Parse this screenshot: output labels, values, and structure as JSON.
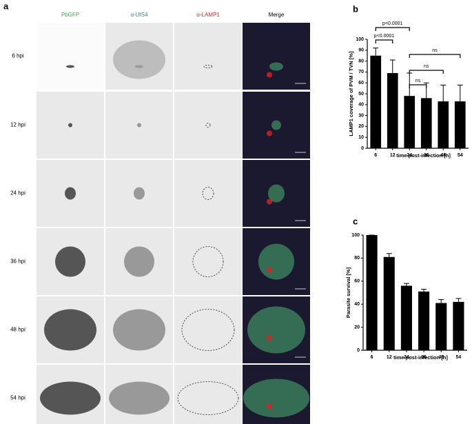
{
  "panels": {
    "a": "a",
    "b": "b",
    "c": "c"
  },
  "columns": [
    {
      "label": "PbGFP",
      "color": "#35b34a"
    },
    {
      "label": "α-UIS4",
      "color": "#3b82c4"
    },
    {
      "label": "α-LAMP1",
      "color": "#e3262b"
    },
    {
      "label": "Merge",
      "color": "#000000"
    }
  ],
  "rows": [
    "6 hpi",
    "12 hpi",
    "24 hpi",
    "36 hpi",
    "48 hpi",
    "54 hpi"
  ],
  "chart_data": [
    {
      "type": "bar",
      "categories": [
        "6",
        "12",
        "24",
        "36",
        "48",
        "54"
      ],
      "series": [
        {
          "values": [
            85,
            69,
            48,
            46,
            43,
            43
          ],
          "errors": [
            7,
            12,
            21,
            14,
            15,
            15
          ],
          "color": "#000000"
        }
      ],
      "ylabel": "LAMP1 coverage of PVM / TVN [%]",
      "xlabel": "time post-infection [h]",
      "ylim": [
        0,
        100
      ],
      "yticks": [
        0,
        10,
        20,
        30,
        40,
        50,
        60,
        70,
        80,
        90,
        100
      ],
      "grid": false,
      "annotations": [
        "p<0.0001",
        "p<0.0001",
        "ns",
        "ns",
        "ns"
      ]
    },
    {
      "type": "bar",
      "categories": [
        "6",
        "12",
        "24",
        "36",
        "48",
        "54"
      ],
      "series": [
        {
          "values": [
            100,
            81,
            56,
            51,
            41,
            42
          ],
          "errors": [
            0,
            3,
            2,
            2,
            3,
            3
          ],
          "color": "#000000"
        }
      ],
      "ylabel": "Parasite survival [%]",
      "xlabel": "time post-infection [h]",
      "ylim": [
        0,
        100
      ],
      "yticks": [
        0,
        20,
        40,
        60,
        80,
        100
      ],
      "grid": false
    }
  ]
}
